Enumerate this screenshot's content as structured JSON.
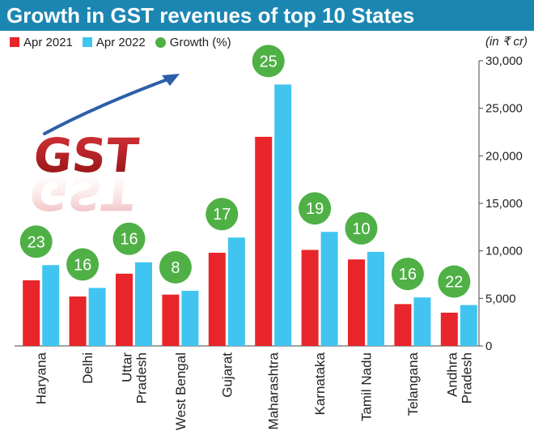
{
  "title": "Growth in GST revenues of top 10 States",
  "unit": "(in ₹ cr)",
  "logo_text": "GST",
  "colors": {
    "title_bg": "#1c86b2",
    "apr2021": "#e8252a",
    "apr2022": "#41c5f0",
    "growth": "#4fb046"
  },
  "legend": [
    {
      "label": "Apr 2021",
      "color_key": "apr2021",
      "kind": "square"
    },
    {
      "label": "Apr 2022",
      "color_key": "apr2022",
      "kind": "square"
    },
    {
      "label": "Growth (%)",
      "color_key": "growth",
      "kind": "dot"
    }
  ],
  "chart_data": {
    "type": "bar",
    "categories": [
      "Haryana",
      "Delhi",
      "Uttar Pradesh",
      "West Bengal",
      "Gujarat",
      "Maharashtra",
      "Karnataka",
      "Tamil Nadu",
      "Telangana",
      "Andhra Pradesh"
    ],
    "category_lines": [
      [
        "Haryana"
      ],
      [
        "Delhi"
      ],
      [
        "Uttar",
        "Pradesh"
      ],
      [
        "West Bengal"
      ],
      [
        "Gujarat"
      ],
      [
        "Maharashtra"
      ],
      [
        "Karnataka"
      ],
      [
        "Tamil Nadu"
      ],
      [
        "Telangana"
      ],
      [
        "Andhra",
        "Pradesh"
      ]
    ],
    "series": [
      {
        "name": "Apr 2021",
        "values": [
          6900,
          5200,
          7600,
          5400,
          9800,
          22000,
          10100,
          9100,
          4400,
          3500
        ]
      },
      {
        "name": "Apr 2022",
        "values": [
          8500,
          6100,
          8800,
          5800,
          11400,
          27500,
          12000,
          9900,
          5100,
          4300
        ]
      }
    ],
    "growth": {
      "name": "Growth (%)",
      "values": [
        23,
        16,
        16,
        8,
        17,
        25,
        19,
        10,
        16,
        22
      ]
    },
    "ylim": [
      0,
      30000
    ],
    "yticks": [
      0,
      5000,
      10000,
      15000,
      20000,
      25000,
      30000
    ],
    "ytick_labels": [
      "0",
      "5,000",
      "10,000",
      "15,000",
      "20,000",
      "25,000",
      "30,000"
    ],
    "y_axis_side": "right",
    "grid": false,
    "legend_position": "top-left"
  }
}
